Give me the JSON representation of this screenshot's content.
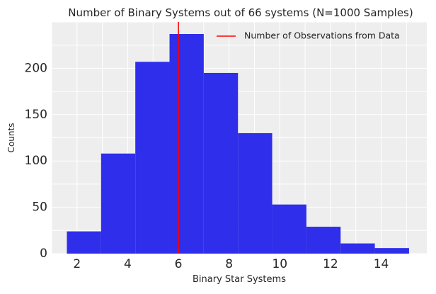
{
  "chart_data": {
    "type": "bar",
    "title": "Number of Binary Systems out of 66 systems (N=1000 Samples)",
    "xlabel": "Binary Star Systems",
    "ylabel": "Counts",
    "xlim": [
      1.0,
      15.8
    ],
    "ylim": [
      0,
      250
    ],
    "xticks": [
      2,
      4,
      6,
      8,
      10,
      12,
      14
    ],
    "yticks": [
      0,
      50,
      100,
      150,
      200
    ],
    "bins": [
      {
        "left": 1.6,
        "right": 2.95,
        "count": 24
      },
      {
        "left": 2.95,
        "right": 4.3,
        "count": 108
      },
      {
        "left": 4.3,
        "right": 5.65,
        "count": 207
      },
      {
        "left": 5.65,
        "right": 7.0,
        "count": 237
      },
      {
        "left": 7.0,
        "right": 8.35,
        "count": 195
      },
      {
        "left": 8.35,
        "right": 9.7,
        "count": 130
      },
      {
        "left": 9.7,
        "right": 11.05,
        "count": 53
      },
      {
        "left": 11.05,
        "right": 12.4,
        "count": 29
      },
      {
        "left": 12.4,
        "right": 13.75,
        "count": 11
      },
      {
        "left": 13.75,
        "right": 15.1,
        "count": 6
      }
    ],
    "reference_line": {
      "x": 6,
      "label": "Number of Observations from Data",
      "color": "#ff0000"
    },
    "bar_color": "#2e2eeb",
    "background": "#eeeeee",
    "grid": true,
    "legend_position": "top-right"
  }
}
